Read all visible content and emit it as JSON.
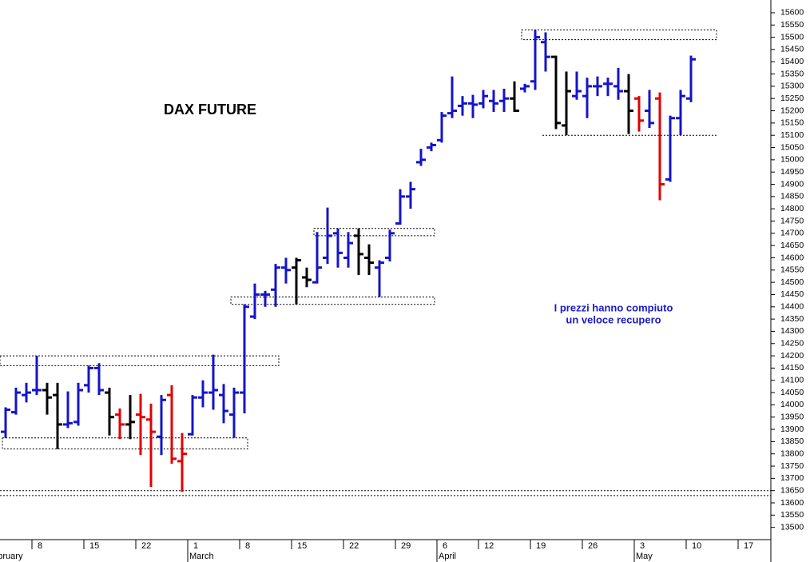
{
  "chart_data": {
    "type": "ohlc",
    "title": "DAX FUTURE",
    "annotation": [
      "I prezzi hanno compiuto",
      "un veloce recupero"
    ],
    "annotation_color": "#1a1acc",
    "x": [
      "Feb 3",
      "Feb 4",
      "Feb 5",
      "Feb 8",
      "Feb 9",
      "Feb 10",
      "Feb 11",
      "Feb 12",
      "Feb 15",
      "Feb 16",
      "Feb 17",
      "Feb 18",
      "Feb 19",
      "Feb 22",
      "Feb 23",
      "Feb 24",
      "Feb 25",
      "Feb 26",
      "Mar 1",
      "Mar 2",
      "Mar 3",
      "Mar 4",
      "Mar 5",
      "Mar 8",
      "Mar 9",
      "Mar 10",
      "Mar 11",
      "Mar 12",
      "Mar 15",
      "Mar 16",
      "Mar 17",
      "Mar 18",
      "Mar 19",
      "Mar 22",
      "Mar 23",
      "Mar 24",
      "Mar 25",
      "Mar 26",
      "Mar 29",
      "Mar 30",
      "Mar 31",
      "Apr 1",
      "Apr 6",
      "Apr 7",
      "Apr 8",
      "Apr 9",
      "Apr 12",
      "Apr 13",
      "Apr 14",
      "Apr 15",
      "Apr 16",
      "Apr 19",
      "Apr 20",
      "Apr 21",
      "Apr 22",
      "Apr 23",
      "Apr 26",
      "Apr 27",
      "Apr 28",
      "Apr 29",
      "Apr 30",
      "May 3",
      "May 4",
      "May 5",
      "May 6",
      "May 7",
      "May 10"
    ],
    "open": [
      13890,
      13970,
      14040,
      14060,
      14060,
      14040,
      13920,
      13930,
      14080,
      14150,
      14050,
      13960,
      13920,
      13960,
      13940,
      13870,
      14040,
      13770,
      13880,
      14030,
      14050,
      14040,
      13960,
      14050,
      14360,
      14450,
      14470,
      14560,
      14560,
      14520,
      14500,
      14600,
      14700,
      14600,
      14690,
      14600,
      14560,
      14600,
      14740,
      14850,
      14990,
      15050,
      15080,
      15190,
      15220,
      15230,
      15230,
      15240,
      15240,
      15250,
      15290,
      15320,
      15480,
      15420,
      15140,
      15260,
      15260,
      15300,
      15310,
      15300,
      15280,
      15250,
      15200,
      15250,
      14920,
      15170,
      15250
    ],
    "high": [
      13990,
      14070,
      14090,
      14200,
      14090,
      14090,
      14055,
      14090,
      14160,
      14170,
      14070,
      13985,
      14040,
      14045,
      14005,
      14040,
      14080,
      13885,
      14040,
      14100,
      14205,
      14085,
      14070,
      14410,
      14495,
      14465,
      14575,
      14600,
      14600,
      14560,
      14705,
      14805,
      14720,
      14705,
      14720,
      14655,
      14590,
      14715,
      14880,
      14910,
      15045,
      15070,
      15195,
      15340,
      15260,
      15265,
      15285,
      15285,
      15290,
      15320,
      15310,
      15530,
      15520,
      15425,
      15360,
      15360,
      15335,
      15340,
      15335,
      15375,
      15350,
      15260,
      15285,
      15275,
      15180,
      15285,
      15425
    ],
    "low": [
      13865,
      13960,
      14010,
      14040,
      13960,
      13820,
      13905,
      13915,
      14050,
      14040,
      13875,
      13860,
      13860,
      13795,
      13665,
      13795,
      13760,
      13645,
      13875,
      13990,
      13980,
      13925,
      13865,
      13965,
      14350,
      14400,
      14400,
      14495,
      14410,
      14480,
      14495,
      14575,
      14560,
      14560,
      14530,
      14530,
      14440,
      14585,
      14735,
      14800,
      14975,
      15035,
      15070,
      15170,
      15180,
      15170,
      15210,
      15195,
      15195,
      15195,
      15275,
      15285,
      15360,
      15125,
      15100,
      15245,
      15170,
      15260,
      15260,
      15245,
      15105,
      15115,
      15130,
      14835,
      14910,
      15100,
      15235
    ],
    "close": [
      13980,
      14050,
      14050,
      14060,
      14030,
      13920,
      13925,
      14060,
      14150,
      14060,
      13950,
      13920,
      13930,
      13950,
      13890,
      14020,
      13780,
      13800,
      14030,
      14050,
      14060,
      13975,
      14050,
      14400,
      14450,
      14450,
      14560,
      14550,
      14590,
      14510,
      14560,
      14690,
      14620,
      14660,
      14615,
      14580,
      14580,
      14700,
      14850,
      14880,
      15000,
      15060,
      15180,
      15200,
      15230,
      15225,
      15260,
      15230,
      15250,
      15200,
      15300,
      15500,
      15420,
      15150,
      15280,
      15280,
      15300,
      15300,
      15310,
      15280,
      15200,
      15160,
      15150,
      14900,
      15170,
      15260,
      15410
    ],
    "colors": [
      "#1414c8",
      "#1414c8",
      "#1414c8",
      "#1414c8",
      "#000000",
      "#000000",
      "#1414c8",
      "#1414c8",
      "#1414c8",
      "#1414c8",
      "#000000",
      "#e00000",
      "#000000",
      "#e00000",
      "#e00000",
      "#1414c8",
      "#e00000",
      "#e00000",
      "#1414c8",
      "#1414c8",
      "#1414c8",
      "#1414c8",
      "#1414c8",
      "#1414c8",
      "#1414c8",
      "#1414c8",
      "#1414c8",
      "#1414c8",
      "#000000",
      "#000000",
      "#1414c8",
      "#1414c8",
      "#1414c8",
      "#1414c8",
      "#000000",
      "#000000",
      "#1414c8",
      "#1414c8",
      "#1414c8",
      "#1414c8",
      "#1414c8",
      "#1414c8",
      "#1414c8",
      "#1414c8",
      "#1414c8",
      "#1414c8",
      "#1414c8",
      "#1414c8",
      "#1414c8",
      "#000000",
      "#1414c8",
      "#1414c8",
      "#1414c8",
      "#000000",
      "#000000",
      "#1414c8",
      "#1414c8",
      "#1414c8",
      "#1414c8",
      "#1414c8",
      "#000000",
      "#e00000",
      "#1414c8",
      "#e00000",
      "#1414c8",
      "#1414c8",
      "#1414c8"
    ],
    "ylim": [
      13450,
      15652
    ],
    "yticks": [
      13500,
      13550,
      13600,
      13650,
      13700,
      13750,
      13800,
      13850,
      13900,
      13950,
      14000,
      14050,
      14100,
      14150,
      14200,
      14250,
      14300,
      14350,
      14400,
      14450,
      14500,
      14550,
      14600,
      14650,
      14700,
      14750,
      14800,
      14850,
      14900,
      14950,
      15000,
      15050,
      15100,
      15150,
      15200,
      15250,
      15300,
      15350,
      15400,
      15450,
      15500,
      15550,
      15600
    ],
    "xticks": [
      {
        "value": "Feb 8",
        "label": "8"
      },
      {
        "value": "Feb 15",
        "label": "15"
      },
      {
        "value": "Feb 22",
        "label": "22"
      },
      {
        "value": "Mar 1",
        "label": "1"
      },
      {
        "value": "Mar 8",
        "label": "8"
      },
      {
        "value": "Mar 15",
        "label": "15"
      },
      {
        "value": "Mar 22",
        "label": "22"
      },
      {
        "value": "Mar 29",
        "label": "29"
      },
      {
        "value": "Apr 6",
        "label": "6"
      },
      {
        "value": "Apr 12",
        "label": "12"
      },
      {
        "value": "Apr 19",
        "label": "19"
      },
      {
        "value": "Apr 26",
        "label": "26"
      },
      {
        "value": "May 3",
        "label": "3"
      },
      {
        "value": "May 10",
        "label": "10"
      },
      {
        "value": "May 17",
        "label": "17"
      }
    ],
    "month_labels": [
      {
        "value": "Feb 1",
        "label": "February"
      },
      {
        "value": "Mar 1",
        "label": "March"
      },
      {
        "value": "Apr 6",
        "label": "April"
      },
      {
        "value": "May 3",
        "label": "May"
      }
    ],
    "zones": [
      {
        "low": 13820,
        "high": 13865,
        "start": "Feb 3",
        "end": "Mar 8"
      },
      {
        "low": 14160,
        "high": 14200,
        "end": "Mar 11"
      },
      {
        "low": 14410,
        "high": 14440,
        "start": "Mar 5",
        "end": "Apr 1"
      },
      {
        "low": 14690,
        "high": 14720,
        "start": "Mar 17",
        "end": "Apr 1"
      },
      {
        "low": 15490,
        "high": 15530,
        "start": "Apr 16",
        "end": "May 13"
      }
    ],
    "levels": [
      {
        "level": 15100,
        "start": "Apr 20",
        "end": "May 13"
      },
      {
        "level": 13650
      },
      {
        "level": 13630
      }
    ]
  }
}
